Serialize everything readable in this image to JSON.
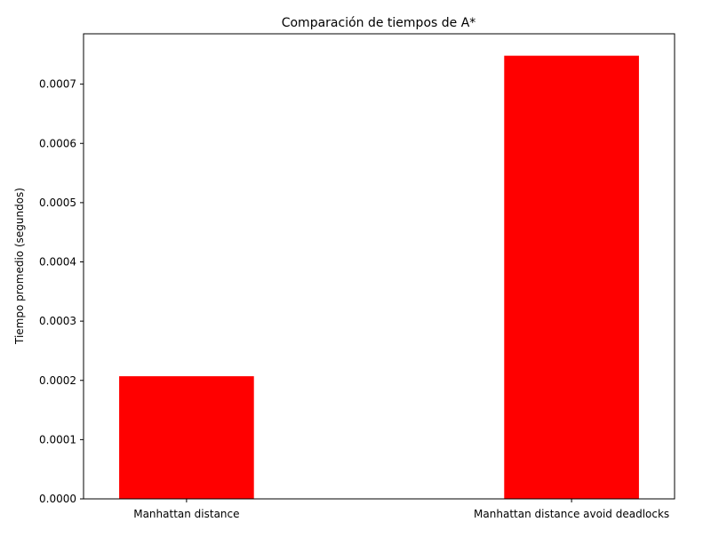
{
  "chart_data": {
    "type": "bar",
    "title": "Comparación de tiempos de A*",
    "xlabel": "",
    "ylabel": "Tiempo promedio (segundos)",
    "categories": [
      "Manhattan distance",
      "Manhattan distance avoid deadlocks"
    ],
    "values": [
      0.000207,
      0.000748
    ],
    "ylim": [
      0,
      0.000785
    ],
    "yticks": [
      0,
      0.0001,
      0.0002,
      0.0003,
      0.0004,
      0.0005,
      0.0006,
      0.0007
    ],
    "ytick_labels": [
      "0.0000",
      "0.0001",
      "0.0002",
      "0.0003",
      "0.0004",
      "0.0005",
      "0.0006",
      "0.0007"
    ],
    "bar_color": "#ff0000",
    "grid": false,
    "legend": "none"
  }
}
